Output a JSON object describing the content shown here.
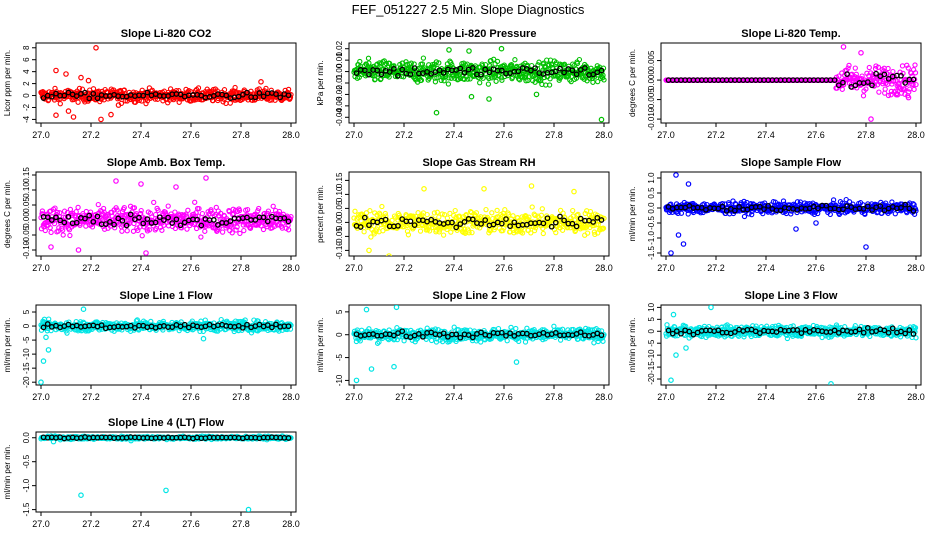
{
  "page": {
    "title": "FEF_051227  2.5 Min. Slope Diagnostics"
  },
  "chart_data": [
    {
      "type": "scatter",
      "title": "Slope Li-820 CO2",
      "ylabel": "Licor ppm per min.",
      "color": "#ff0000",
      "xlim": [
        26.98,
        28.02
      ],
      "ylim": [
        -4.6,
        8.8
      ],
      "xticks": [
        "27.0",
        "27.2",
        "27.4",
        "27.6",
        "27.8",
        "28.0"
      ],
      "yticks": [
        "-4",
        "-2",
        "0",
        "2",
        "4",
        "6",
        "8"
      ],
      "center": 0,
      "spread": 1.0,
      "outliers": [
        [
          27.22,
          8.0
        ],
        [
          27.06,
          4.2
        ],
        [
          27.1,
          3.6
        ],
        [
          27.16,
          3.0
        ],
        [
          27.19,
          2.5
        ],
        [
          27.11,
          -2.6
        ],
        [
          27.06,
          -3.3
        ],
        [
          27.13,
          -3.6
        ],
        [
          27.24,
          -4.0
        ],
        [
          27.28,
          -3.2
        ],
        [
          27.31,
          -1.6
        ],
        [
          27.88,
          2.3
        ]
      ]
    },
    {
      "type": "scatter",
      "title": "Slope Li-820 Pressure",
      "ylabel": "kPa per min.",
      "color": "#00c000",
      "xlim": [
        26.98,
        28.02
      ],
      "ylim": [
        -0.045,
        0.025
      ],
      "xticks": [
        "27.0",
        "27.2",
        "27.4",
        "27.6",
        "27.8",
        "28.0"
      ],
      "yticks": [
        "-0.04",
        "-0.03",
        "-0.02",
        "-0.01",
        "0.00",
        "0.01",
        "0.02"
      ],
      "center": 0,
      "spread": 0.009,
      "outliers": [
        [
          27.33,
          -0.036
        ],
        [
          27.99,
          -0.042
        ],
        [
          27.54,
          -0.024
        ],
        [
          27.47,
          -0.022
        ],
        [
          27.73,
          -0.02
        ],
        [
          27.59,
          0.02
        ],
        [
          27.38,
          0.019
        ],
        [
          27.46,
          0.018
        ]
      ]
    },
    {
      "type": "scatter",
      "title": "Slope Li-820 Temp.",
      "ylabel": "degrees C per min.",
      "color": "#ff00ff",
      "xlim": [
        26.98,
        28.02
      ],
      "ylim": [
        -0.011,
        0.0095
      ],
      "xticks": [
        "27.0",
        "27.2",
        "27.4",
        "27.6",
        "27.8",
        "28.0"
      ],
      "yticks": [
        "-0.010",
        "-0.005",
        "0.000",
        "0.005"
      ],
      "center": 0,
      "spread": 0.0,
      "active_start": 27.68,
      "active_spread": 0.0035,
      "outliers": [
        [
          27.82,
          -0.01
        ],
        [
          27.71,
          0.0085
        ],
        [
          27.97,
          -0.0045
        ],
        [
          27.78,
          0.007
        ]
      ]
    },
    {
      "type": "scatter",
      "title": "Slope Amb. Box Temp.",
      "ylabel": "degrees C per min.",
      "color": "#ff00ff",
      "xlim": [
        26.98,
        28.02
      ],
      "ylim": [
        -0.12,
        0.16
      ],
      "xticks": [
        "27.0",
        "27.2",
        "27.4",
        "27.6",
        "27.8",
        "28.0"
      ],
      "yticks": [
        "-0.10",
        "-0.05",
        "0.00",
        "0.05",
        "0.10",
        "0.15"
      ],
      "center": 0,
      "spread": 0.04,
      "outliers": [
        [
          27.3,
          0.13
        ],
        [
          27.66,
          0.14
        ],
        [
          27.4,
          0.12
        ],
        [
          27.54,
          0.11
        ],
        [
          27.15,
          -0.1
        ],
        [
          27.42,
          -0.11
        ],
        [
          27.04,
          -0.09
        ]
      ]
    },
    {
      "type": "scatter",
      "title": "Slope Gas Stream RH",
      "ylabel": "percent per min.",
      "color": "#ffff00",
      "xlim": [
        26.98,
        28.02
      ],
      "ylim": [
        -0.12,
        0.18
      ],
      "xticks": [
        "27.0",
        "27.2",
        "27.4",
        "27.6",
        "27.8",
        "28.0"
      ],
      "yticks": [
        "-0.10",
        "-0.05",
        "0.00",
        "0.05",
        "0.10",
        "0.15"
      ],
      "center": 0,
      "spread": 0.04,
      "outliers": [
        [
          27.14,
          -0.12
        ],
        [
          27.28,
          0.12
        ],
        [
          27.52,
          0.12
        ],
        [
          27.71,
          0.13
        ],
        [
          27.06,
          -0.1
        ],
        [
          27.88,
          0.11
        ]
      ]
    },
    {
      "type": "scatter",
      "title": "Slope Sample Flow",
      "ylabel": "ml/min per min.",
      "color": "#0000ff",
      "xlim": [
        26.98,
        28.02
      ],
      "ylim": [
        -1.6,
        1.2
      ],
      "xticks": [
        "27.0",
        "27.2",
        "27.4",
        "27.6",
        "27.8",
        "28.0"
      ],
      "yticks": [
        "-1.5",
        "-1.0",
        "-0.5",
        "0.0",
        "0.5",
        "1.0"
      ],
      "center": 0,
      "spread": 0.18,
      "outliers": [
        [
          27.04,
          1.1
        ],
        [
          27.02,
          -1.5
        ],
        [
          27.07,
          -1.2
        ],
        [
          27.05,
          -0.9
        ],
        [
          27.8,
          -1.3
        ],
        [
          27.52,
          -0.7
        ],
        [
          27.09,
          0.8
        ],
        [
          27.6,
          -0.5
        ]
      ]
    },
    {
      "type": "scatter",
      "title": "Slope Line 1 Flow",
      "ylabel": "ml/min per min.",
      "color": "#00e5e5",
      "xlim": [
        26.98,
        28.02
      ],
      "ylim": [
        -21,
        7.5
      ],
      "xticks": [
        "27.0",
        "27.2",
        "27.4",
        "27.6",
        "27.8",
        "28.0"
      ],
      "yticks": [
        "-20",
        "-15",
        "-10",
        "-5",
        "0",
        "5"
      ],
      "center": 0,
      "spread": 1.8,
      "outliers": [
        [
          27.0,
          -20.0
        ],
        [
          27.01,
          -12.5
        ],
        [
          27.03,
          -8.5
        ],
        [
          27.65,
          -4.5
        ],
        [
          27.17,
          6.0
        ],
        [
          27.02,
          -4.0
        ]
      ]
    },
    {
      "type": "scatter",
      "title": "Slope Line 2 Flow",
      "ylabel": "ml/min per min.",
      "color": "#00e5e5",
      "xlim": [
        26.98,
        28.02
      ],
      "ylim": [
        -11,
        6.5
      ],
      "xticks": [
        "27.0",
        "27.2",
        "27.4",
        "27.6",
        "27.8",
        "28.0"
      ],
      "yticks": [
        "-10",
        "-5",
        "0",
        "5"
      ],
      "center": 0,
      "spread": 1.3,
      "outliers": [
        [
          27.01,
          -10.0
        ],
        [
          27.07,
          -7.5
        ],
        [
          27.16,
          -7.0
        ],
        [
          27.05,
          5.5
        ],
        [
          27.17,
          6.0
        ],
        [
          27.65,
          -6.0
        ]
      ]
    },
    {
      "type": "scatter",
      "title": "Slope Line 3 Flow",
      "ylabel": "ml/min per min.",
      "color": "#00e5e5",
      "xlim": [
        26.98,
        28.02
      ],
      "ylim": [
        -22.5,
        11
      ],
      "xticks": [
        "27.0",
        "27.2",
        "27.4",
        "27.6",
        "27.8",
        "28.0"
      ],
      "yticks": [
        "-20",
        "-15",
        "-10",
        "-5",
        "0",
        "5",
        "10"
      ],
      "center": 0,
      "spread": 2.2,
      "outliers": [
        [
          27.02,
          -20.5
        ],
        [
          27.66,
          -22.0
        ],
        [
          27.04,
          -10.0
        ],
        [
          27.18,
          10.0
        ],
        [
          27.03,
          7.0
        ],
        [
          27.08,
          -7.0
        ]
      ]
    },
    {
      "type": "scatter",
      "title": "Slope Line 4 (LT) Flow",
      "ylabel": "ml/min per min.",
      "color": "#00e5e5",
      "xlim": [
        26.98,
        28.02
      ],
      "ylim": [
        -1.55,
        0.12
      ],
      "xticks": [
        "27.0",
        "27.2",
        "27.4",
        "27.6",
        "27.8",
        "28.0"
      ],
      "yticks": [
        "-1.5",
        "-1.0",
        "-0.5",
        "0.0"
      ],
      "center": 0,
      "spread": 0.03,
      "outliers": [
        [
          27.16,
          -1.2
        ],
        [
          27.5,
          -1.1
        ],
        [
          27.83,
          -1.5
        ],
        [
          27.05,
          -0.08
        ],
        [
          27.36,
          -0.06
        ]
      ]
    }
  ]
}
